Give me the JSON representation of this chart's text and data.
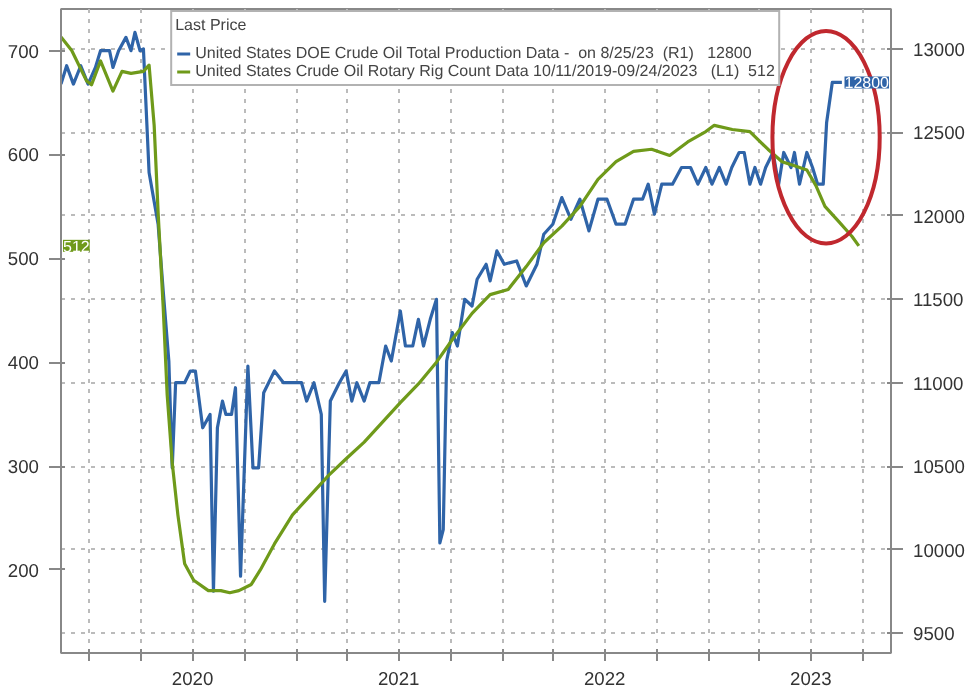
{
  "chart_data": {
    "type": "line",
    "legend_title": "Last Price",
    "legend": "top",
    "grid": true,
    "xlim": [
      "2019-11-11",
      "2023-11-20"
    ],
    "xticks": [
      {
        "value": "2020-01-01",
        "label": null
      },
      {
        "value": "2020-04-01",
        "label": null
      },
      {
        "value": "2020-07-01",
        "label": "2020"
      },
      {
        "value": "2020-10-01",
        "label": null
      },
      {
        "value": "2021-01-01",
        "label": null
      },
      {
        "value": "2021-04-01",
        "label": null
      },
      {
        "value": "2021-07-01",
        "label": "2021"
      },
      {
        "value": "2021-10-01",
        "label": null
      },
      {
        "value": "2022-01-01",
        "label": null
      },
      {
        "value": "2022-04-01",
        "label": null
      },
      {
        "value": "2022-07-01",
        "label": "2022"
      },
      {
        "value": "2022-10-01",
        "label": null
      },
      {
        "value": "2023-01-01",
        "label": null
      },
      {
        "value": "2023-04-01",
        "label": null
      },
      {
        "value": "2023-07-01",
        "label": "2023"
      },
      {
        "value": "2023-10-01",
        "label": null
      }
    ],
    "ylim": [
      120,
      740
    ],
    "yticks": [
      200,
      300,
      400,
      500,
      600,
      700
    ],
    "y2lim": [
      9380,
      13240
    ],
    "y2ticks": [
      9500,
      10000,
      10500,
      11000,
      11500,
      12000,
      12500,
      13000
    ],
    "annotations": [
      "12800",
      "512"
    ],
    "series": [
      {
        "name": "United States DOE Crude Oil Total Production Data -  on 8/25/23  (R1)   12800",
        "color": "#2f64a8",
        "axis": "y2",
        "x": [
          "2019-11-11",
          "2019-11-21",
          "2019-12-03",
          "2019-12-16",
          "2019-12-29",
          "2020-01-11",
          "2020-01-20",
          "2020-02-05",
          "2020-02-11",
          "2020-02-21",
          "2020-03-05",
          "2020-03-14",
          "2020-03-21",
          "2020-03-30",
          "2020-04-05",
          "2020-04-15",
          "2020-05-01",
          "2020-05-10",
          "2020-05-20",
          "2020-05-26",
          "2020-06-01",
          "2020-06-17",
          "2020-06-27",
          "2020-07-06",
          "2020-07-19",
          "2020-08-01",
          "2020-08-07",
          "2020-08-14",
          "2020-08-23",
          "2020-08-29",
          "2020-09-08",
          "2020-09-15",
          "2020-09-24",
          "2020-10-07",
          "2020-10-16",
          "2020-10-26",
          "2020-11-04",
          "2020-11-23",
          "2020-12-09",
          "2020-12-25",
          "2021-01-10",
          "2021-01-19",
          "2021-02-01",
          "2021-02-14",
          "2021-02-20",
          "2021-03-02",
          "2021-03-18",
          "2021-03-30",
          "2021-04-09",
          "2021-04-18",
          "2021-05-01",
          "2021-05-11",
          "2021-05-27",
          "2021-06-08",
          "2021-06-18",
          "2021-07-04",
          "2021-07-13",
          "2021-07-26",
          "2021-08-05",
          "2021-08-14",
          "2021-08-26",
          "2021-09-06",
          "2021-09-12",
          "2021-09-18",
          "2021-09-24",
          "2021-10-04",
          "2021-10-13",
          "2021-10-26",
          "2021-11-08",
          "2021-11-17",
          "2021-12-03",
          "2021-12-10",
          "2021-12-22",
          "2022-01-04",
          "2022-01-26",
          "2022-02-12",
          "2022-03-03",
          "2022-03-15",
          "2022-03-31",
          "2022-04-16",
          "2022-05-02",
          "2022-05-18",
          "2022-06-03",
          "2022-06-19",
          "2022-07-05",
          "2022-07-21",
          "2022-08-06",
          "2022-08-21",
          "2022-09-06",
          "2022-09-16",
          "2022-09-27",
          "2022-10-10",
          "2022-10-29",
          "2022-11-14",
          "2022-11-30",
          "2022-12-13",
          "2022-12-27",
          "2023-01-07",
          "2023-01-20",
          "2023-02-01",
          "2023-02-11",
          "2023-02-24",
          "2023-03-05",
          "2023-03-15",
          "2023-03-24",
          "2023-04-03",
          "2023-04-12",
          "2023-04-25",
          "2023-05-05",
          "2023-05-14",
          "2023-05-27",
          "2023-06-02",
          "2023-06-11",
          "2023-06-24",
          "2023-07-04",
          "2023-07-13",
          "2023-07-23",
          "2023-07-29",
          "2023-08-08",
          "2023-08-25"
        ],
        "values": [
          12790,
          12900,
          12790,
          12900,
          12790,
          12890,
          12990,
          12990,
          12890,
          12990,
          13070,
          12990,
          13100,
          12990,
          13000,
          12260,
          11950,
          11550,
          11130,
          10490,
          11000,
          11000,
          11070,
          11070,
          10730,
          10810,
          9750,
          10730,
          10890,
          10810,
          10810,
          10970,
          9840,
          11100,
          10490,
          10490,
          10940,
          11070,
          11000,
          11000,
          11000,
          10890,
          11000,
          10810,
          9690,
          10890,
          11000,
          11070,
          10890,
          11000,
          10890,
          11000,
          11000,
          11220,
          11130,
          11430,
          11220,
          11220,
          11380,
          11220,
          11380,
          11500,
          10040,
          10120,
          11130,
          11300,
          11220,
          11500,
          11460,
          11620,
          11710,
          11610,
          11790,
          11710,
          11730,
          11580,
          11710,
          11890,
          11950,
          12110,
          11980,
          12100,
          11910,
          12100,
          12100,
          11950,
          11950,
          12100,
          12100,
          12190,
          12010,
          12190,
          12190,
          12290,
          12290,
          12190,
          12290,
          12190,
          12290,
          12190,
          12290,
          12380,
          12380,
          12190,
          12290,
          12190,
          12290,
          12380,
          12190,
          12380,
          12290,
          12380,
          12190,
          12380,
          12290,
          12190,
          12190,
          12560,
          12800,
          12800
        ]
      },
      {
        "name": "United States Crude Oil Rotary Rig Count Data 10/11/2019-09/24/2023   (L1)  512",
        "color": "#6f9a1a",
        "x": [
          "2019-11-11",
          "2019-11-30",
          "2019-12-26",
          "2020-01-04",
          "2020-01-20",
          "2020-02-11",
          "2020-02-27",
          "2020-03-14",
          "2020-04-05",
          "2020-04-15",
          "2020-04-24",
          "2020-05-01",
          "2020-05-10",
          "2020-05-17",
          "2020-05-26",
          "2020-06-05",
          "2020-06-17",
          "2020-07-03",
          "2020-07-29",
          "2020-08-20",
          "2020-09-05",
          "2020-09-21",
          "2020-10-13",
          "2020-10-29",
          "2020-11-23",
          "2020-12-25",
          "2021-01-26",
          "2021-02-27",
          "2021-03-30",
          "2021-05-01",
          "2021-06-02",
          "2021-07-04",
          "2021-08-05",
          "2021-09-06",
          "2021-10-07",
          "2021-11-08",
          "2021-12-10",
          "2022-01-11",
          "2022-02-12",
          "2022-03-15",
          "2022-04-16",
          "2022-05-18",
          "2022-06-19",
          "2022-07-21",
          "2022-08-21",
          "2022-09-22",
          "2022-10-24",
          "2022-11-25",
          "2022-12-27",
          "2023-01-11",
          "2023-02-12",
          "2023-03-15",
          "2023-04-16",
          "2023-05-11",
          "2023-06-02",
          "2023-06-24",
          "2023-07-10",
          "2023-07-26",
          "2023-08-20",
          "2023-09-12",
          "2023-09-24"
        ],
        "values": [
          713,
          700,
          671,
          667,
          690,
          661,
          680,
          678,
          680,
          686,
          628,
          544,
          453,
          369,
          303,
          253,
          206,
          190,
          180,
          180,
          178,
          180,
          186,
          200,
          225,
          253,
          272,
          291,
          307,
          323,
          342,
          361,
          379,
          400,
          424,
          447,
          465,
          470,
          492,
          515,
          531,
          550,
          576,
          593,
          603,
          605,
          599,
          612,
          622,
          628,
          624,
          622,
          605,
          593,
          589,
          585,
          570,
          550,
          535,
          521,
          512
        ]
      }
    ]
  }
}
